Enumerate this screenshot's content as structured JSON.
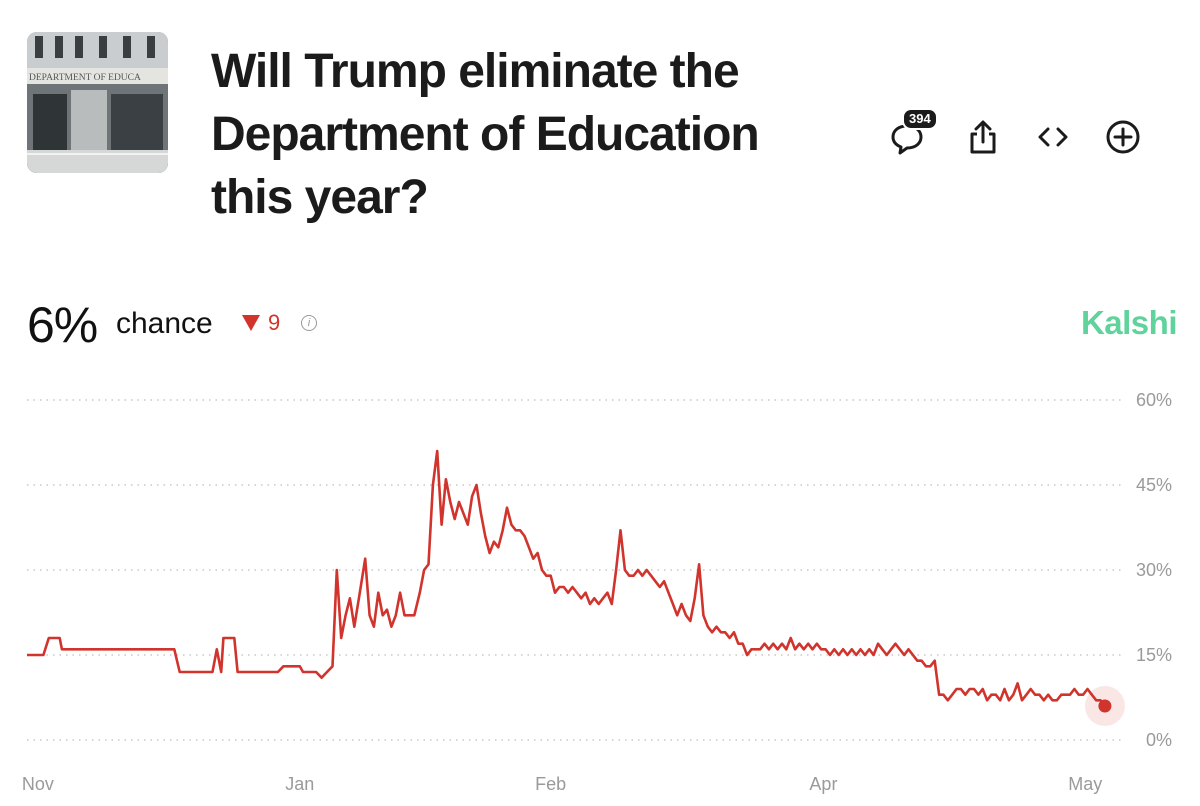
{
  "thumbnail": {
    "sign_text": "DEPARTMENT OF EDUCA"
  },
  "header": {
    "title": "Will Trump eliminate the Department of Education this year?",
    "comment_count": "394"
  },
  "icons": [
    "comment-icon",
    "share-icon",
    "embed-icon",
    "add-icon"
  ],
  "summary": {
    "percent": "6%",
    "chance_label": "chance",
    "delta": "9",
    "delta_direction": "down",
    "brand": "Kalshi"
  },
  "colors": {
    "line": "#d0342c",
    "brand": "#5fd39b",
    "grid": "#c8c8c8",
    "axis_text": "#9a9a9a"
  },
  "chart_data": {
    "type": "line",
    "title": "",
    "xlabel": "",
    "ylabel": "",
    "ylim": [
      0,
      60
    ],
    "yticks": [
      0,
      15,
      30,
      45,
      60
    ],
    "ytick_labels": [
      "0%",
      "15%",
      "30%",
      "45%",
      "60%"
    ],
    "xtick_labels": [
      "Nov",
      "Jan",
      "Feb",
      "Apr",
      "May"
    ],
    "xtick_positions": [
      1,
      25,
      48,
      73,
      97
    ],
    "xlim": [
      0,
      100
    ],
    "grid": true,
    "series": [
      {
        "values": [
          [
            0,
            15
          ],
          [
            1.5,
            15
          ],
          [
            2,
            18
          ],
          [
            3,
            18
          ],
          [
            3.2,
            16
          ],
          [
            13,
            16
          ],
          [
            13.5,
            16
          ],
          [
            14,
            12
          ],
          [
            17,
            12
          ],
          [
            17.4,
            16
          ],
          [
            17.8,
            12
          ],
          [
            18,
            18
          ],
          [
            19,
            18
          ],
          [
            19.3,
            12
          ],
          [
            23,
            12
          ],
          [
            23.5,
            13
          ],
          [
            25,
            13
          ],
          [
            25.3,
            12
          ],
          [
            26.5,
            12
          ],
          [
            27,
            11
          ],
          [
            27.5,
            12
          ],
          [
            28,
            13
          ],
          [
            28.4,
            30
          ],
          [
            28.8,
            18
          ],
          [
            29.2,
            22
          ],
          [
            29.6,
            25
          ],
          [
            30,
            20
          ],
          [
            30.5,
            26
          ],
          [
            31,
            32
          ],
          [
            31.4,
            22
          ],
          [
            31.8,
            20
          ],
          [
            32.2,
            26
          ],
          [
            32.6,
            22
          ],
          [
            33,
            23
          ],
          [
            33.4,
            20
          ],
          [
            33.8,
            22
          ],
          [
            34.2,
            26
          ],
          [
            34.6,
            22
          ],
          [
            35,
            22
          ],
          [
            35.5,
            22
          ],
          [
            36,
            26
          ],
          [
            36.4,
            30
          ],
          [
            36.8,
            31
          ],
          [
            37.2,
            45
          ],
          [
            37.6,
            51
          ],
          [
            38,
            38
          ],
          [
            38.4,
            46
          ],
          [
            38.8,
            42
          ],
          [
            39.2,
            39
          ],
          [
            39.6,
            42
          ],
          [
            40,
            40
          ],
          [
            40.4,
            38
          ],
          [
            40.8,
            43
          ],
          [
            41.2,
            45
          ],
          [
            41.6,
            40
          ],
          [
            42,
            36
          ],
          [
            42.4,
            33
          ],
          [
            42.8,
            35
          ],
          [
            43.2,
            34
          ],
          [
            43.6,
            37
          ],
          [
            44,
            41
          ],
          [
            44.4,
            38
          ],
          [
            44.8,
            37
          ],
          [
            45.2,
            37
          ],
          [
            45.6,
            36
          ],
          [
            46,
            34
          ],
          [
            46.4,
            32
          ],
          [
            46.8,
            33
          ],
          [
            47.2,
            30
          ],
          [
            47.6,
            29
          ],
          [
            48,
            29
          ],
          [
            48.4,
            26
          ],
          [
            48.8,
            27
          ],
          [
            49.2,
            27
          ],
          [
            49.6,
            26
          ],
          [
            50,
            27
          ],
          [
            50.4,
            26
          ],
          [
            50.8,
            25
          ],
          [
            51.2,
            26
          ],
          [
            51.6,
            24
          ],
          [
            52,
            25
          ],
          [
            52.4,
            24
          ],
          [
            52.8,
            25
          ],
          [
            53.2,
            26
          ],
          [
            53.6,
            24
          ],
          [
            54,
            30
          ],
          [
            54.4,
            37
          ],
          [
            54.8,
            30
          ],
          [
            55.2,
            29
          ],
          [
            55.6,
            29
          ],
          [
            56,
            30
          ],
          [
            56.4,
            29
          ],
          [
            56.8,
            30
          ],
          [
            57.2,
            29
          ],
          [
            57.6,
            28
          ],
          [
            58,
            27
          ],
          [
            58.4,
            28
          ],
          [
            58.8,
            26
          ],
          [
            59.2,
            24
          ],
          [
            59.6,
            22
          ],
          [
            60,
            24
          ],
          [
            60.4,
            22
          ],
          [
            60.8,
            21
          ],
          [
            61.2,
            25
          ],
          [
            61.6,
            31
          ],
          [
            62,
            22
          ],
          [
            62.4,
            20
          ],
          [
            62.8,
            19
          ],
          [
            63.2,
            20
          ],
          [
            63.6,
            19
          ],
          [
            64,
            19
          ],
          [
            64.4,
            18
          ],
          [
            64.8,
            19
          ],
          [
            65.2,
            17
          ],
          [
            65.6,
            17
          ],
          [
            66,
            15
          ],
          [
            66.4,
            16
          ],
          [
            66.8,
            16
          ],
          [
            67.2,
            16
          ],
          [
            67.6,
            17
          ],
          [
            68,
            16
          ],
          [
            68.4,
            17
          ],
          [
            68.8,
            16
          ],
          [
            69.2,
            17
          ],
          [
            69.6,
            16
          ],
          [
            70,
            18
          ],
          [
            70.4,
            16
          ],
          [
            70.8,
            17
          ],
          [
            71.2,
            16
          ],
          [
            71.6,
            17
          ],
          [
            72,
            16
          ],
          [
            72.4,
            17
          ],
          [
            72.8,
            16
          ],
          [
            73.2,
            16
          ],
          [
            73.6,
            15
          ],
          [
            74,
            16
          ],
          [
            74.4,
            15
          ],
          [
            74.8,
            16
          ],
          [
            75.2,
            15
          ],
          [
            75.6,
            16
          ],
          [
            76,
            15
          ],
          [
            76.4,
            16
          ],
          [
            76.8,
            15
          ],
          [
            77.2,
            16
          ],
          [
            77.6,
            15
          ],
          [
            78,
            17
          ],
          [
            78.4,
            16
          ],
          [
            78.8,
            15
          ],
          [
            79.2,
            16
          ],
          [
            79.6,
            17
          ],
          [
            80,
            16
          ],
          [
            80.4,
            15
          ],
          [
            80.8,
            16
          ],
          [
            81.2,
            15
          ],
          [
            81.6,
            14
          ],
          [
            82,
            14
          ],
          [
            82.4,
            13
          ],
          [
            82.8,
            13
          ],
          [
            83.2,
            14
          ],
          [
            83.6,
            8
          ],
          [
            84,
            8
          ],
          [
            84.4,
            7
          ],
          [
            84.8,
            8
          ],
          [
            85.2,
            9
          ],
          [
            85.6,
            9
          ],
          [
            86,
            8
          ],
          [
            86.4,
            9
          ],
          [
            86.8,
            9
          ],
          [
            87.2,
            8
          ],
          [
            87.6,
            9
          ],
          [
            88,
            7
          ],
          [
            88.4,
            8
          ],
          [
            88.8,
            8
          ],
          [
            89.2,
            7
          ],
          [
            89.6,
            9
          ],
          [
            90,
            7
          ],
          [
            90.4,
            8
          ],
          [
            90.8,
            10
          ],
          [
            91.2,
            7
          ],
          [
            91.6,
            8
          ],
          [
            92,
            9
          ],
          [
            92.4,
            8
          ],
          [
            92.8,
            8
          ],
          [
            93.2,
            7
          ],
          [
            93.6,
            8
          ],
          [
            94,
            7
          ],
          [
            94.4,
            7
          ],
          [
            94.8,
            8
          ],
          [
            95.2,
            8
          ],
          [
            95.6,
            8
          ],
          [
            96,
            9
          ],
          [
            96.4,
            8
          ],
          [
            96.8,
            8
          ],
          [
            97.2,
            9
          ],
          [
            97.6,
            8
          ],
          [
            98,
            7
          ],
          [
            98.4,
            7
          ],
          [
            98.8,
            6
          ]
        ]
      }
    ]
  }
}
